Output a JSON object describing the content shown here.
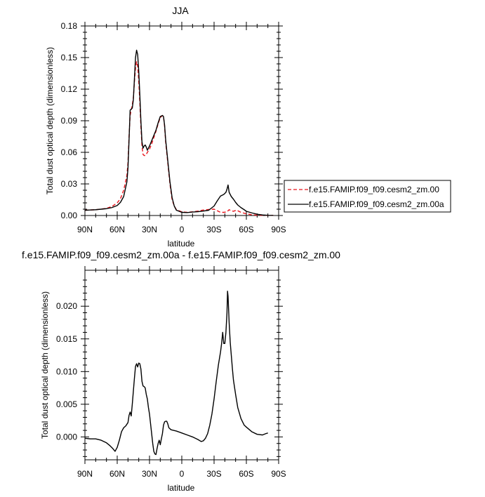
{
  "chart_data": [
    {
      "type": "line",
      "title": "JJA",
      "xlabel": "latitude",
      "ylabel": "Total dust optical depth (dimensionless)",
      "xlim": [
        90,
        -90
      ],
      "ylim": [
        0,
        0.18
      ],
      "x_ticks": [
        90,
        60,
        30,
        0,
        -30,
        -60,
        -90
      ],
      "x_tick_labels": [
        "90N",
        "60N",
        "30N",
        "0",
        "30S",
        "60S",
        "90S"
      ],
      "y_ticks": [
        0,
        0.03,
        0.06,
        0.09,
        0.12,
        0.15,
        0.18
      ],
      "y_tick_labels": [
        "0.00",
        "0.03",
        "0.06",
        "0.09",
        "0.12",
        "0.15",
        "0.18"
      ],
      "legend_position": "right",
      "series": [
        {
          "name": "f.e15.FAMIP.f09_f09.cesm2_zm.00",
          "color": "#e8151c",
          "dash": "dashed",
          "points": [
            [
              90,
              0.005
            ],
            [
              80,
              0.0055
            ],
            [
              70,
              0.0068
            ],
            [
              65,
              0.0085
            ],
            [
              60,
              0.012
            ],
            [
              57,
              0.016
            ],
            [
              54,
              0.024
            ],
            [
              51,
              0.038
            ],
            [
              50,
              0.05
            ],
            [
              49,
              0.075
            ],
            [
              48,
              0.095
            ],
            [
              46,
              0.105
            ],
            [
              45,
              0.112
            ],
            [
              44,
              0.127
            ],
            [
              43,
              0.14
            ],
            [
              42,
              0.146
            ],
            [
              41,
              0.142
            ],
            [
              40,
              0.128
            ],
            [
              39,
              0.108
            ],
            [
              38,
              0.085
            ],
            [
              37,
              0.066
            ],
            [
              36,
              0.058
            ],
            [
              35,
              0.057
            ],
            [
              34,
              0.057
            ],
            [
              33,
              0.058
            ],
            [
              32,
              0.06
            ],
            [
              30,
              0.063
            ],
            [
              28,
              0.068
            ],
            [
              26,
              0.074
            ],
            [
              24,
              0.08
            ],
            [
              22,
              0.087
            ],
            [
              20,
              0.093
            ],
            [
              18,
              0.095
            ],
            [
              17,
              0.094
            ],
            [
              16,
              0.085
            ],
            [
              15,
              0.07
            ],
            [
              13,
              0.05
            ],
            [
              11,
              0.03
            ],
            [
              9,
              0.015
            ],
            [
              7,
              0.009
            ],
            [
              5,
              0.0055
            ],
            [
              0,
              0.0035
            ],
            [
              -5,
              0.003
            ],
            [
              -10,
              0.0035
            ],
            [
              -15,
              0.0042
            ],
            [
              -20,
              0.0052
            ],
            [
              -25,
              0.0057
            ],
            [
              -30,
              0.006
            ],
            [
              -33,
              0.0045
            ],
            [
              -36,
              0.003
            ],
            [
              -39,
              0.003
            ],
            [
              -42,
              0.0035
            ],
            [
              -44,
              0.0055
            ],
            [
              -46,
              0.0045
            ],
            [
              -48,
              0.004
            ],
            [
              -50,
              0.0048
            ],
            [
              -52,
              0.0045
            ],
            [
              -55,
              0.003
            ],
            [
              -60,
              0.0016
            ],
            [
              -65,
              0.0007
            ],
            [
              -70,
              0.0003
            ],
            [
              -75,
              0.0001
            ],
            [
              -80,
              0.0001
            ],
            [
              -85,
              0.0001
            ]
          ]
        },
        {
          "name": "f.e15.FAMIP.f09_f09.cesm2_zm.00a",
          "color": "#000000",
          "dash": "solid",
          "points": [
            [
              90,
              0.005
            ],
            [
              80,
              0.0055
            ],
            [
              70,
              0.0065
            ],
            [
              65,
              0.0075
            ],
            [
              60,
              0.0095
            ],
            [
              57,
              0.0125
            ],
            [
              54,
              0.018
            ],
            [
              51,
              0.032
            ],
            [
              50,
              0.045
            ],
            [
              49,
              0.072
            ],
            [
              48,
              0.1
            ],
            [
              46,
              0.102
            ],
            [
              45,
              0.11
            ],
            [
              44,
              0.13
            ],
            [
              43,
              0.15
            ],
            [
              42,
              0.157
            ],
            [
              41,
              0.153
            ],
            [
              40,
              0.137
            ],
            [
              39,
              0.115
            ],
            [
              38,
              0.09
            ],
            [
              37,
              0.07
            ],
            [
              36,
              0.064
            ],
            [
              35,
              0.066
            ],
            [
              34,
              0.067
            ],
            [
              33,
              0.065
            ],
            [
              32,
              0.062
            ],
            [
              30,
              0.066
            ],
            [
              28,
              0.071
            ],
            [
              26,
              0.076
            ],
            [
              24,
              0.081
            ],
            [
              22,
              0.088
            ],
            [
              20,
              0.094
            ],
            [
              18,
              0.095
            ],
            [
              17,
              0.094
            ],
            [
              16,
              0.086
            ],
            [
              15,
              0.072
            ],
            [
              13,
              0.052
            ],
            [
              11,
              0.032
            ],
            [
              9,
              0.017
            ],
            [
              7,
              0.009
            ],
            [
              5,
              0.005
            ],
            [
              0,
              0.003
            ],
            [
              -5,
              0.0028
            ],
            [
              -10,
              0.0033
            ],
            [
              -15,
              0.0036
            ],
            [
              -20,
              0.0042
            ],
            [
              -25,
              0.005
            ],
            [
              -30,
              0.009
            ],
            [
              -33,
              0.014
            ],
            [
              -36,
              0.0185
            ],
            [
              -39,
              0.02
            ],
            [
              -40,
              0.021
            ],
            [
              -41,
              0.022
            ],
            [
              -42,
              0.025
            ],
            [
              -43,
              0.029
            ],
            [
              -44,
              0.022
            ],
            [
              -46,
              0.018
            ],
            [
              -48,
              0.0155
            ],
            [
              -50,
              0.0125
            ],
            [
              -52,
              0.01
            ],
            [
              -55,
              0.0075
            ],
            [
              -58,
              0.0055
            ],
            [
              -60,
              0.004
            ],
            [
              -65,
              0.0025
            ],
            [
              -70,
              0.0012
            ],
            [
              -75,
              0.0005
            ],
            [
              -80,
              0.0002
            ],
            [
              -85,
              0.0001
            ]
          ]
        }
      ]
    },
    {
      "type": "line",
      "title": "f.e15.FAMIP.f09_f09.cesm2_zm.00a - f.e15.FAMIP.f09_f09.cesm2_zm.00",
      "xlabel": "latitude",
      "ylabel": "Total dust optical depth (dimensionless)",
      "xlim": [
        90,
        -90
      ],
      "ylim": [
        -0.0035,
        0.0255
      ],
      "x_ticks": [
        90,
        60,
        30,
        0,
        -30,
        -60,
        -90
      ],
      "x_tick_labels": [
        "90N",
        "60N",
        "30N",
        "0",
        "30S",
        "60S",
        "90S"
      ],
      "y_ticks": [
        0,
        0.005,
        0.01,
        0.015,
        0.02
      ],
      "y_tick_labels": [
        "0.000",
        "0.005",
        "0.010",
        "0.015",
        "0.020"
      ],
      "series": [
        {
          "color": "#000000",
          "dash": "solid",
          "points": [
            [
              90,
              -0.0002
            ],
            [
              85,
              -0.0003
            ],
            [
              80,
              -0.0003
            ],
            [
              75,
              -0.0005
            ],
            [
              70,
              -0.0009
            ],
            [
              67,
              -0.0013
            ],
            [
              64,
              -0.0018
            ],
            [
              62,
              -0.0022
            ],
            [
              60,
              -0.0016
            ],
            [
              58,
              -0.0005
            ],
            [
              56,
              0.0008
            ],
            [
              54,
              0.0014
            ],
            [
              52,
              0.0017
            ],
            [
              50,
              0.0022
            ],
            [
              49,
              0.0033
            ],
            [
              48,
              0.0038
            ],
            [
              47,
              0.0032
            ],
            [
              46,
              0.005
            ],
            [
              45,
              0.007
            ],
            [
              44,
              0.009
            ],
            [
              43,
              0.0108
            ],
            [
              42,
              0.0112
            ],
            [
              41,
              0.0107
            ],
            [
              40,
              0.0113
            ],
            [
              39,
              0.0112
            ],
            [
              38,
              0.0104
            ],
            [
              37,
              0.0085
            ],
            [
              36,
              0.0078
            ],
            [
              35,
              0.0077
            ],
            [
              34,
              0.0075
            ],
            [
              33,
              0.0065
            ],
            [
              32,
              0.0058
            ],
            [
              31,
              0.0045
            ],
            [
              30,
              0.0035
            ],
            [
              29,
              0.002
            ],
            [
              28,
              0.0005
            ],
            [
              27,
              -0.001
            ],
            [
              26,
              -0.0022
            ],
            [
              25,
              -0.0026
            ],
            [
              24,
              -0.0027
            ],
            [
              23,
              -0.0018
            ],
            [
              22,
              -0.001
            ],
            [
              21,
              -0.0005
            ],
            [
              20,
              -0.0012
            ],
            [
              19,
              -0.0003
            ],
            [
              18,
              0.0005
            ],
            [
              17,
              0.0018
            ],
            [
              16,
              0.0023
            ],
            [
              15,
              0.0024
            ],
            [
              14,
              0.0024
            ],
            [
              13,
              0.002
            ],
            [
              12,
              0.0014
            ],
            [
              10,
              0.0011
            ],
            [
              5,
              0.0009
            ],
            [
              0,
              0.0006
            ],
            [
              -5,
              0.0003
            ],
            [
              -10,
              0.0
            ],
            [
              -15,
              -0.0004
            ],
            [
              -18,
              -0.0007
            ],
            [
              -20,
              -0.0006
            ],
            [
              -22,
              -0.0002
            ],
            [
              -24,
              0.0005
            ],
            [
              -26,
              0.0018
            ],
            [
              -28,
              0.0035
            ],
            [
              -30,
              0.0058
            ],
            [
              -32,
              0.0085
            ],
            [
              -34,
              0.011
            ],
            [
              -36,
              0.013
            ],
            [
              -37,
              0.0143
            ],
            [
              -38,
              0.016
            ],
            [
              -39,
              0.0143
            ],
            [
              -40,
              0.0143
            ],
            [
              -41,
              0.016
            ],
            [
              -42,
              0.019
            ],
            [
              -42.5,
              0.0223
            ],
            [
              -43,
              0.0215
            ],
            [
              -44,
              0.0175
            ],
            [
              -45,
              0.0145
            ],
            [
              -46,
              0.0125
            ],
            [
              -47,
              0.0105
            ],
            [
              -48,
              0.0087
            ],
            [
              -50,
              0.0065
            ],
            [
              -52,
              0.0045
            ],
            [
              -55,
              0.0028
            ],
            [
              -58,
              0.0018
            ],
            [
              -60,
              0.0015
            ],
            [
              -65,
              0.0008
            ],
            [
              -70,
              0.0004
            ],
            [
              -75,
              0.0003
            ],
            [
              -78,
              0.0005
            ],
            [
              -80,
              0.0006
            ]
          ]
        }
      ]
    }
  ]
}
